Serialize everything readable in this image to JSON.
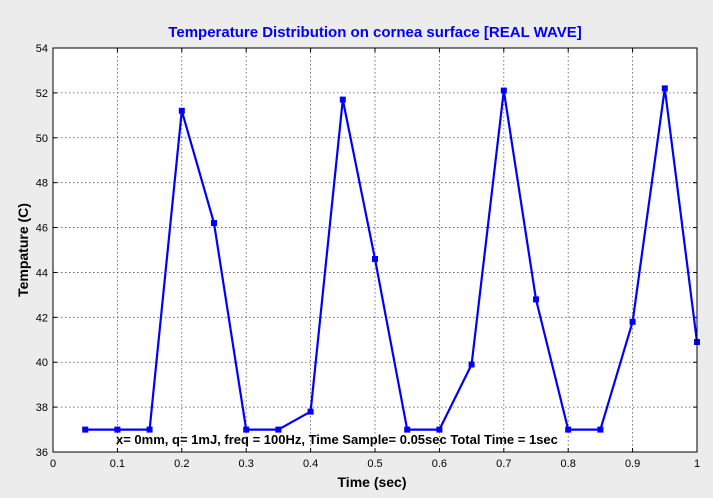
{
  "chart_data": {
    "type": "line",
    "title": "Temperature Distribution on cornea surface [REAL WAVE]",
    "xlabel": "Time (sec)",
    "ylabel": "Tempature (C)",
    "xlim": [
      0,
      1
    ],
    "ylim": [
      36,
      54
    ],
    "xticks": [
      0,
      0.1,
      0.2,
      0.3,
      0.4,
      0.5,
      0.6,
      0.7,
      0.8,
      0.9,
      1
    ],
    "xtick_labels": [
      "0",
      "0.1",
      "0.2",
      "0.3",
      "0.4",
      "0.5",
      "0.6",
      "0.7",
      "0.8",
      "0.9",
      "1"
    ],
    "yticks": [
      36,
      38,
      40,
      42,
      44,
      46,
      48,
      50,
      52,
      54
    ],
    "ytick_labels": [
      "36",
      "38",
      "40",
      "42",
      "44",
      "46",
      "48",
      "50",
      "52",
      "54"
    ],
    "grid": true,
    "series": [
      {
        "color": "#0000ff",
        "marker": "square",
        "x": [
          0.05,
          0.1,
          0.15,
          0.2,
          0.25,
          0.3,
          0.35,
          0.4,
          0.45,
          0.5,
          0.55,
          0.6,
          0.65,
          0.7,
          0.75,
          0.8,
          0.85,
          0.9,
          0.95,
          1.0
        ],
        "y": [
          37.0,
          37.0,
          37.0,
          51.2,
          46.2,
          37.0,
          37.0,
          37.8,
          51.7,
          44.6,
          37.0,
          37.0,
          39.9,
          52.1,
          42.8,
          37.0,
          37.0,
          41.8,
          52.2,
          40.9
        ]
      }
    ],
    "annotation": "x= 0mm, q= 1mJ, freq = 100Hz, Time Sample= 0.05sec Total Time = 1sec"
  }
}
